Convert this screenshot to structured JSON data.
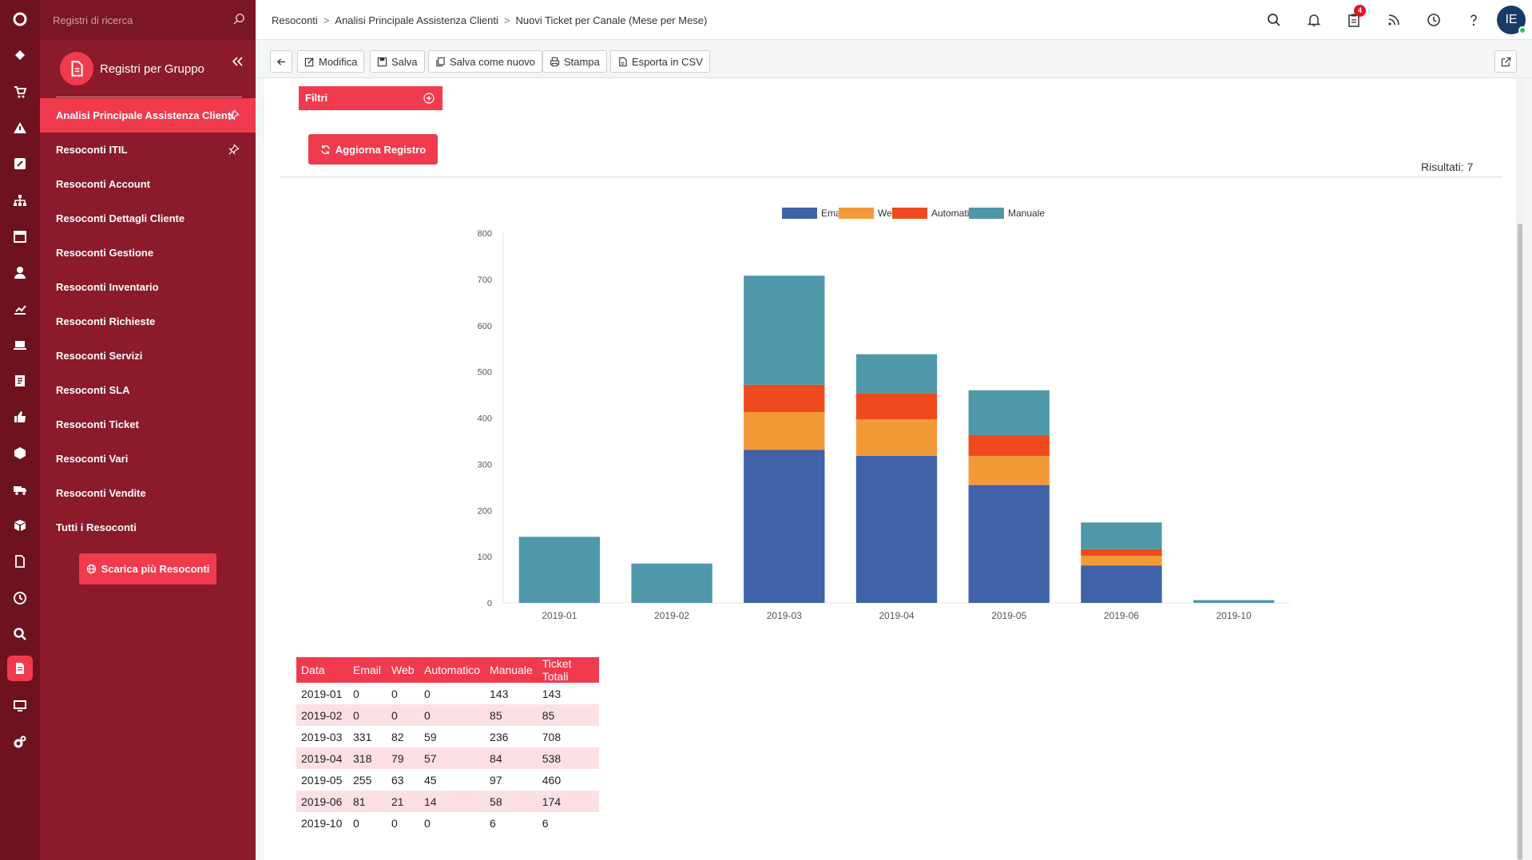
{
  "colors": {
    "brand_red": "#f03a4e",
    "sidebar": "#8b1a2a",
    "rail": "#6e1220",
    "email": "#3f62a8",
    "web": "#f29a38",
    "automatico": "#ef4a1d",
    "manuale": "#4e98aa"
  },
  "rail": {
    "icons": [
      "logo-icon",
      "ticket-icon",
      "cart-icon",
      "warning-icon",
      "edit-icon",
      "sitemap-icon",
      "calendar-icon",
      "user-icon",
      "chart-icon",
      "laptop-icon",
      "notes-icon",
      "thumbs-up-icon",
      "box-icon",
      "truck-icon",
      "cube-icon",
      "document-icon",
      "clock-icon",
      "search-icon",
      "reports-icon",
      "monitor-icon",
      "gears-icon"
    ]
  },
  "sidebar": {
    "search_placeholder": "Registri di ricerca",
    "title": "Registri per Gruppo",
    "items": [
      {
        "label": "Analisi Principale Assistenza Clienti"
      },
      {
        "label": "Resoconti ITIL"
      },
      {
        "label": "Resoconti Account"
      },
      {
        "label": "Resoconti Dettagli Cliente"
      },
      {
        "label": "Resoconti Gestione"
      },
      {
        "label": "Resoconti Inventario"
      },
      {
        "label": "Resoconti Richieste"
      },
      {
        "label": "Resoconti Servizi"
      },
      {
        "label": "Resoconti SLA"
      },
      {
        "label": "Resoconti Ticket"
      },
      {
        "label": "Resoconti Vari"
      },
      {
        "label": "Resoconti Vendite"
      },
      {
        "label": "Tutti i Resoconti"
      }
    ],
    "download_label": "Scarica più Resoconti"
  },
  "breadcrumb": [
    "Resoconti",
    "Analisi Principale Assistenza Clienti",
    "Nuovi Ticket per Canale (Mese per Mese)"
  ],
  "topbar": {
    "notification_count": "4",
    "avatar_initials": "IE"
  },
  "toolbar": {
    "edit": "Modifica",
    "save": "Salva",
    "save_as_new": "Salva come nuovo",
    "print": "Stampa",
    "export_csv": "Esporta in CSV"
  },
  "filters_label": "Filtri",
  "refresh_label": "Aggiorna Registro",
  "results_label": "Risultati: 7",
  "chart_data": {
    "type": "bar",
    "stacked": true,
    "categories": [
      "2019-01",
      "2019-02",
      "2019-03",
      "2019-04",
      "2019-05",
      "2019-06",
      "2019-10"
    ],
    "series": [
      {
        "name": "Email",
        "values": [
          0,
          0,
          331,
          318,
          255,
          81,
          0
        ]
      },
      {
        "name": "Web",
        "values": [
          0,
          0,
          82,
          79,
          63,
          21,
          0
        ]
      },
      {
        "name": "Automatico",
        "values": [
          0,
          0,
          59,
          57,
          45,
          14,
          0
        ]
      },
      {
        "name": "Manuale",
        "values": [
          143,
          85,
          236,
          84,
          97,
          58,
          6
        ]
      }
    ],
    "ylim": [
      0,
      800
    ],
    "yticks": [
      0,
      100,
      200,
      300,
      400,
      500,
      600,
      700,
      800
    ],
    "legend": "top-center",
    "grid": false
  },
  "table": {
    "headers": [
      "Data",
      "Email",
      "Web",
      "Automatico",
      "Manuale",
      "Ticket Totali"
    ],
    "rows": [
      [
        "2019-01",
        "0",
        "0",
        "0",
        "143",
        "143"
      ],
      [
        "2019-02",
        "0",
        "0",
        "0",
        "85",
        "85"
      ],
      [
        "2019-03",
        "331",
        "82",
        "59",
        "236",
        "708"
      ],
      [
        "2019-04",
        "318",
        "79",
        "57",
        "84",
        "538"
      ],
      [
        "2019-05",
        "255",
        "63",
        "45",
        "97",
        "460"
      ],
      [
        "2019-06",
        "81",
        "21",
        "14",
        "58",
        "174"
      ],
      [
        "2019-10",
        "0",
        "0",
        "0",
        "6",
        "6"
      ]
    ]
  }
}
